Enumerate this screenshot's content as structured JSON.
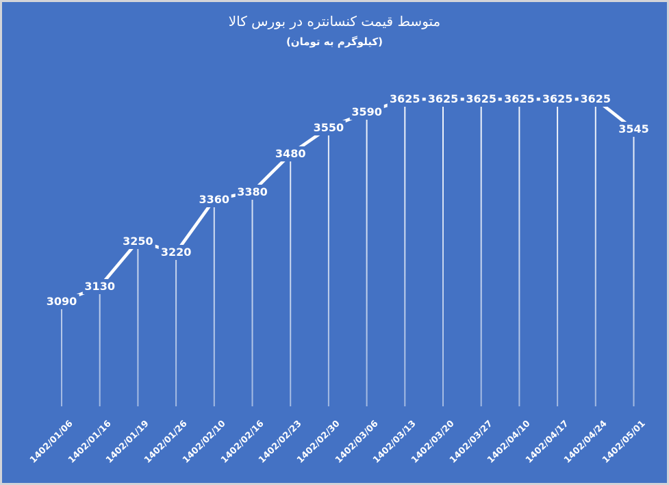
{
  "colors": {
    "background": "#4472C4",
    "border": "#d3d4d8",
    "line": "#FFFFFF",
    "drop_line": "#FFFFFF",
    "text": "#FFFFFF"
  },
  "chart_data": {
    "type": "line",
    "title": "متوسط قیمت کنسانتره در بورس کالا",
    "subtitle": "(کیلوگرم به تومان)",
    "categories": [
      "1402/01/06",
      "1402/01/16",
      "1402/01/19",
      "1402/01/26",
      "1402/02/10",
      "1402/02/16",
      "1402/02/23",
      "1402/02/30",
      "1402/03/06",
      "1402/03/13",
      "1402/03/20",
      "1402/03/27",
      "1402/04/10",
      "1402/04/17",
      "1402/04/24",
      "1402/05/01"
    ],
    "values": [
      3090,
      3130,
      3250,
      3220,
      3360,
      3380,
      3480,
      3550,
      3590,
      3625,
      3625,
      3625,
      3625,
      3625,
      3625,
      3545
    ],
    "series": [
      {
        "name": "متوسط قیمت کنسانتره",
        "values": [
          3090,
          3130,
          3250,
          3220,
          3360,
          3380,
          3480,
          3550,
          3590,
          3625,
          3625,
          3625,
          3625,
          3625,
          3625,
          3545
        ]
      }
    ],
    "xlabel": "",
    "ylabel": "",
    "ylim_approx": [
      2812,
      3680
    ],
    "grid": false,
    "legend": "none",
    "axes_visible": false,
    "data_labels_position": "center",
    "drop_lines": true,
    "x_tick_rotation": -45
  }
}
